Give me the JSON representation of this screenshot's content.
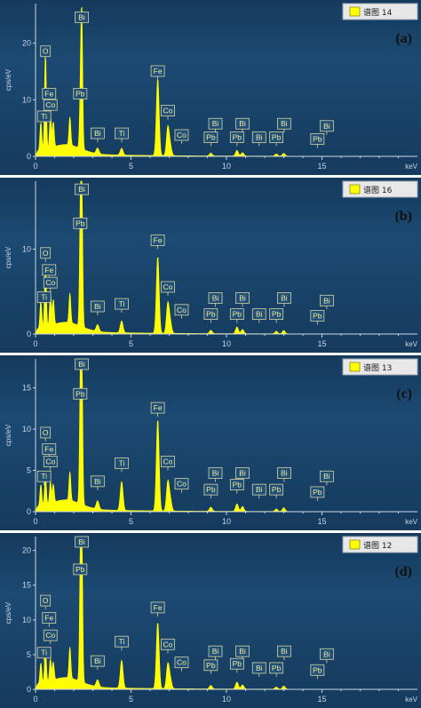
{
  "colors": {
    "background": "#1c4a72",
    "background_edge": "#153a5e",
    "spectrum": "#ffff00",
    "axis": "#c9d6e6",
    "tick_text": "#c9d6e6",
    "label_box_fill": "#1f4f78",
    "label_box_stroke": "#d9d29a",
    "label_text": "#f2ec9c",
    "letter": "#111111"
  },
  "chart_data": [
    {
      "type": "area",
      "panel_letter": "(a)",
      "legend": "谱图 14",
      "ylabel": "cps/eV",
      "xlabel": "keV",
      "xlim": [
        0,
        20
      ],
      "ylim": [
        0,
        27
      ],
      "x_ticks": [
        0,
        5,
        10,
        15
      ],
      "y_ticks": [
        0,
        10,
        20
      ],
      "peaks": [
        {
          "x": 0.28,
          "y": 5
        },
        {
          "x": 0.52,
          "y": 17
        },
        {
          "x": 0.78,
          "y": 6
        },
        {
          "x": 0.93,
          "y": 4.5
        },
        {
          "x": 1.8,
          "y": 5
        },
        {
          "x": 2.35,
          "y": 8
        },
        {
          "x": 2.42,
          "y": 23
        },
        {
          "x": 3.25,
          "y": 1
        },
        {
          "x": 4.51,
          "y": 1.2
        },
        {
          "x": 6.4,
          "y": 13.5
        },
        {
          "x": 7.06,
          "y": 1.6
        },
        {
          "x": 6.93,
          "y": 5
        },
        {
          "x": 9.18,
          "y": 0.5
        },
        {
          "x": 10.55,
          "y": 1
        },
        {
          "x": 10.84,
          "y": 0.6
        },
        {
          "x": 12.61,
          "y": 0.4
        },
        {
          "x": 13.0,
          "y": 0.5
        }
      ],
      "labels": [
        {
          "text": "Bi",
          "x": 2.42,
          "y": 23
        },
        {
          "text": "O",
          "x": 0.52,
          "y": 17
        },
        {
          "text": "Fe",
          "x": 6.4,
          "y": 13.5
        },
        {
          "text": "Fe",
          "x": 0.71,
          "y": 9.5
        },
        {
          "text": "Pb",
          "x": 2.34,
          "y": 9.5
        },
        {
          "text": "Co",
          "x": 0.78,
          "y": 7.5
        },
        {
          "text": "Ti",
          "x": 0.45,
          "y": 5.5
        },
        {
          "text": "Co",
          "x": 6.93,
          "y": 6.5
        },
        {
          "text": "Bi",
          "x": 3.25,
          "y": 2.5
        },
        {
          "text": "Ti",
          "x": 4.51,
          "y": 2.5
        },
        {
          "text": "Co",
          "x": 7.65,
          "y": 2.2
        },
        {
          "text": "Bi",
          "x": 9.42,
          "y": 4.2
        },
        {
          "text": "Bi",
          "x": 10.84,
          "y": 4.2
        },
        {
          "text": "Bi",
          "x": 13.02,
          "y": 4.2
        },
        {
          "text": "Bi",
          "x": 15.25,
          "y": 3.8
        },
        {
          "text": "Pb",
          "x": 9.18,
          "y": 1.8
        },
        {
          "text": "Pb",
          "x": 10.55,
          "y": 1.8
        },
        {
          "text": "Bi",
          "x": 11.71,
          "y": 1.8
        },
        {
          "text": "Pb",
          "x": 12.61,
          "y": 1.8
        },
        {
          "text": "Pb",
          "x": 14.76,
          "y": 1.5
        }
      ]
    },
    {
      "type": "area",
      "panel_letter": "(b)",
      "legend": "谱图 16",
      "ylabel": "cps/eV",
      "xlabel": "keV",
      "xlim": [
        0,
        20
      ],
      "ylim": [
        0,
        18
      ],
      "x_ticks": [
        0,
        5,
        10,
        15
      ],
      "y_ticks": [
        0,
        10
      ],
      "peaks": [
        {
          "x": 0.28,
          "y": 3.2
        },
        {
          "x": 0.52,
          "y": 7.5
        },
        {
          "x": 0.78,
          "y": 3.8
        },
        {
          "x": 0.93,
          "y": 3
        },
        {
          "x": 1.8,
          "y": 3.5
        },
        {
          "x": 2.35,
          "y": 12
        },
        {
          "x": 2.42,
          "y": 16
        },
        {
          "x": 3.25,
          "y": 0.8
        },
        {
          "x": 4.51,
          "y": 1.4
        },
        {
          "x": 6.4,
          "y": 9
        },
        {
          "x": 7.06,
          "y": 1.2
        },
        {
          "x": 6.93,
          "y": 3.5
        },
        {
          "x": 9.18,
          "y": 0.4
        },
        {
          "x": 10.55,
          "y": 0.8
        },
        {
          "x": 10.84,
          "y": 0.5
        },
        {
          "x": 12.61,
          "y": 0.3
        },
        {
          "x": 13.0,
          "y": 0.4
        }
      ],
      "labels": [
        {
          "text": "Bi",
          "x": 2.42,
          "y": 16
        },
        {
          "text": "O",
          "x": 0.52,
          "y": 8.5
        },
        {
          "text": "Fe",
          "x": 6.4,
          "y": 10
        },
        {
          "text": "Pb",
          "x": 2.34,
          "y": 12
        },
        {
          "text": "Fe",
          "x": 0.71,
          "y": 6.5
        },
        {
          "text": "Co",
          "x": 0.78,
          "y": 5
        },
        {
          "text": "Ti",
          "x": 0.45,
          "y": 3.3
        },
        {
          "text": "Co",
          "x": 6.93,
          "y": 4.5
        },
        {
          "text": "Bi",
          "x": 3.25,
          "y": 2.2
        },
        {
          "text": "Ti",
          "x": 4.51,
          "y": 2.5
        },
        {
          "text": "Co",
          "x": 7.65,
          "y": 1.8
        },
        {
          "text": "Bi",
          "x": 9.42,
          "y": 3.2
        },
        {
          "text": "Bi",
          "x": 10.84,
          "y": 3.2
        },
        {
          "text": "Bi",
          "x": 13.02,
          "y": 3.2
        },
        {
          "text": "Bi",
          "x": 15.25,
          "y": 2.9
        },
        {
          "text": "Pb",
          "x": 9.18,
          "y": 1.3
        },
        {
          "text": "Pb",
          "x": 10.55,
          "y": 1.3
        },
        {
          "text": "Bi",
          "x": 11.71,
          "y": 1.3
        },
        {
          "text": "Pb",
          "x": 12.61,
          "y": 1.3
        },
        {
          "text": "Pb",
          "x": 14.76,
          "y": 1.1
        }
      ]
    },
    {
      "type": "area",
      "panel_letter": "(c)",
      "legend": "谱图 13",
      "ylabel": "cps/eV",
      "xlabel": "keV",
      "xlim": [
        0,
        20
      ],
      "ylim": [
        0,
        18.5
      ],
      "x_ticks": [
        0,
        5,
        10,
        15
      ],
      "y_ticks": [
        0,
        5,
        10,
        15
      ],
      "peaks": [
        {
          "x": 0.28,
          "y": 2.6
        },
        {
          "x": 0.52,
          "y": 3.5
        },
        {
          "x": 0.78,
          "y": 2.6
        },
        {
          "x": 0.93,
          "y": 2.2
        },
        {
          "x": 1.8,
          "y": 3.5
        },
        {
          "x": 2.35,
          "y": 13
        },
        {
          "x": 2.42,
          "y": 17.5
        },
        {
          "x": 3.25,
          "y": 1
        },
        {
          "x": 4.51,
          "y": 3.5
        },
        {
          "x": 6.4,
          "y": 11
        },
        {
          "x": 7.06,
          "y": 1.3
        },
        {
          "x": 6.93,
          "y": 3.5
        },
        {
          "x": 9.18,
          "y": 0.5
        },
        {
          "x": 10.55,
          "y": 0.9
        },
        {
          "x": 10.84,
          "y": 0.6
        },
        {
          "x": 12.61,
          "y": 0.3
        },
        {
          "x": 13.0,
          "y": 0.45
        }
      ],
      "labels": [
        {
          "text": "Bi",
          "x": 2.42,
          "y": 17.5
        },
        {
          "text": "Pb",
          "x": 2.34,
          "y": 13.2
        },
        {
          "text": "Fe",
          "x": 6.4,
          "y": 11.5
        },
        {
          "text": "O",
          "x": 0.52,
          "y": 8.5
        },
        {
          "text": "Fe",
          "x": 0.71,
          "y": 6.5
        },
        {
          "text": "Co",
          "x": 0.78,
          "y": 5
        },
        {
          "text": "Ti",
          "x": 0.45,
          "y": 3.2
        },
        {
          "text": "Ti",
          "x": 4.51,
          "y": 4.8
        },
        {
          "text": "Co",
          "x": 6.93,
          "y": 5
        },
        {
          "text": "Bi",
          "x": 3.25,
          "y": 2.6
        },
        {
          "text": "Co",
          "x": 7.65,
          "y": 2.3
        },
        {
          "text": "Bi",
          "x": 9.42,
          "y": 3.6
        },
        {
          "text": "Bi",
          "x": 10.84,
          "y": 3.6
        },
        {
          "text": "Bi",
          "x": 13.02,
          "y": 3.6
        },
        {
          "text": "Bi",
          "x": 15.25,
          "y": 3.2
        },
        {
          "text": "Pb",
          "x": 9.18,
          "y": 1.6
        },
        {
          "text": "Pb",
          "x": 10.55,
          "y": 2.2
        },
        {
          "text": "Bi",
          "x": 11.71,
          "y": 1.6
        },
        {
          "text": "Pb",
          "x": 12.61,
          "y": 1.6
        },
        {
          "text": "Pb",
          "x": 14.76,
          "y": 1.3
        }
      ]
    },
    {
      "type": "area",
      "panel_letter": "(d)",
      "legend": "谱图 12",
      "ylabel": "cps/eV",
      "xlabel": "keV",
      "xlim": [
        0,
        20
      ],
      "ylim": [
        0,
        22
      ],
      "x_ticks": [
        0,
        5,
        10,
        15
      ],
      "y_ticks": [
        0,
        5,
        10,
        15,
        20
      ],
      "peaks": [
        {
          "x": 0.28,
          "y": 3
        },
        {
          "x": 0.52,
          "y": 5
        },
        {
          "x": 0.78,
          "y": 3.2
        },
        {
          "x": 0.93,
          "y": 2.6
        },
        {
          "x": 1.8,
          "y": 4.5
        },
        {
          "x": 2.35,
          "y": 15
        },
        {
          "x": 2.42,
          "y": 20.5
        },
        {
          "x": 3.25,
          "y": 1
        },
        {
          "x": 4.51,
          "y": 4
        },
        {
          "x": 6.4,
          "y": 9.5
        },
        {
          "x": 7.06,
          "y": 1.3
        },
        {
          "x": 6.93,
          "y": 3.5
        },
        {
          "x": 9.18,
          "y": 0.5
        },
        {
          "x": 10.55,
          "y": 1
        },
        {
          "x": 10.84,
          "y": 0.6
        },
        {
          "x": 12.61,
          "y": 0.3
        },
        {
          "x": 13.0,
          "y": 0.45
        }
      ],
      "labels": [
        {
          "text": "Bi",
          "x": 2.42,
          "y": 20.5
        },
        {
          "text": "Pb",
          "x": 2.34,
          "y": 16
        },
        {
          "text": "O",
          "x": 0.52,
          "y": 11.5
        },
        {
          "text": "Fe",
          "x": 0.71,
          "y": 9
        },
        {
          "text": "Fe",
          "x": 6.4,
          "y": 10.5
        },
        {
          "text": "Co",
          "x": 0.78,
          "y": 6.5
        },
        {
          "text": "Ti",
          "x": 0.45,
          "y": 4
        },
        {
          "text": "Ti",
          "x": 4.51,
          "y": 5.6
        },
        {
          "text": "Co",
          "x": 6.93,
          "y": 5.2
        },
        {
          "text": "Bi",
          "x": 3.25,
          "y": 2.8
        },
        {
          "text": "Co",
          "x": 7.65,
          "y": 2.6
        },
        {
          "text": "Bi",
          "x": 9.42,
          "y": 4.2
        },
        {
          "text": "Bi",
          "x": 10.84,
          "y": 4.2
        },
        {
          "text": "Bi",
          "x": 13.02,
          "y": 4.2
        },
        {
          "text": "Bi",
          "x": 15.25,
          "y": 3.8
        },
        {
          "text": "Pb",
          "x": 9.18,
          "y": 2.2
        },
        {
          "text": "Pb",
          "x": 10.55,
          "y": 2.4
        },
        {
          "text": "Bi",
          "x": 11.71,
          "y": 1.8
        },
        {
          "text": "Pb",
          "x": 12.61,
          "y": 1.8
        },
        {
          "text": "Pb",
          "x": 14.76,
          "y": 1.5
        }
      ]
    }
  ]
}
